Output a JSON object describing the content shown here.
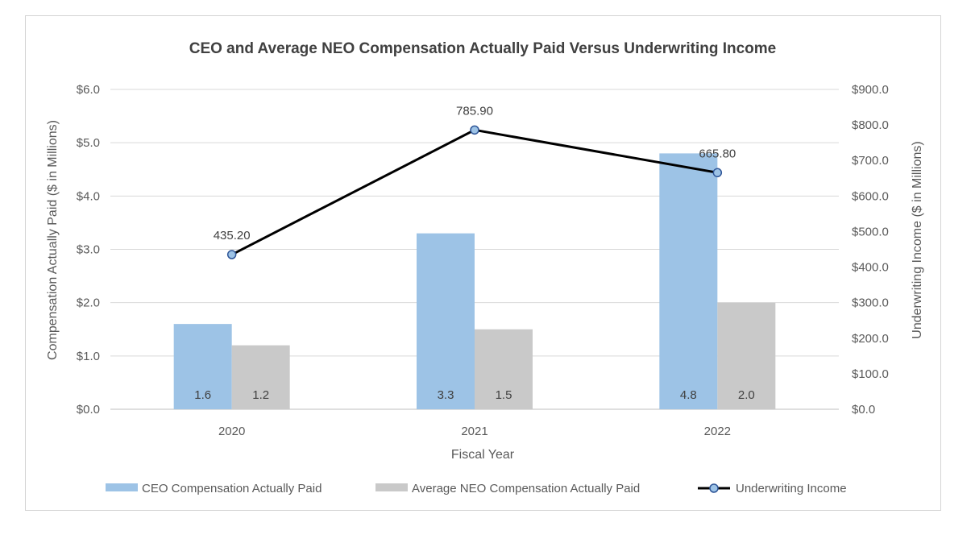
{
  "chart_data": {
    "type": "bar",
    "title": "CEO and Average NEO Compensation Actually Paid Versus Underwriting Income",
    "xlabel": "Fiscal Year",
    "ylabel": "Compensation Actually Paid ($ in Millions)",
    "y2label": "Underwriting Income ($ in Millions)",
    "categories": [
      "2020",
      "2021",
      "2022"
    ],
    "ylim": [
      0,
      6
    ],
    "y2lim": [
      0,
      900
    ],
    "yticks": [
      "$0.0",
      "$1.0",
      "$2.0",
      "$3.0",
      "$4.0",
      "$5.0",
      "$6.0"
    ],
    "y2ticks": [
      "$0.0",
      "$100.0",
      "$200.0",
      "$300.0",
      "$400.0",
      "$500.0",
      "$600.0",
      "$700.0",
      "$800.0",
      "$900.0"
    ],
    "grid": true,
    "legend_position": "bottom",
    "series": [
      {
        "name": "CEO Compensation Actually Paid",
        "type": "bar",
        "axis": "left",
        "values": [
          1.6,
          3.3,
          4.8
        ],
        "labels": [
          "1.6",
          "3.3",
          "4.8"
        ],
        "color": "#9dc3e6"
      },
      {
        "name": "Average NEO Compensation Actually Paid",
        "type": "bar",
        "axis": "left",
        "values": [
          1.2,
          1.5,
          2.0
        ],
        "labels": [
          "1.2",
          "1.5",
          "2.0"
        ],
        "color": "#c9c9c9"
      },
      {
        "name": "Underwriting Income",
        "type": "line",
        "axis": "right",
        "values": [
          435.2,
          785.9,
          665.8
        ],
        "labels": [
          "435.20",
          "785.90",
          "665.80"
        ],
        "color": "#000000",
        "marker_color": "#9dc3e6"
      }
    ]
  }
}
